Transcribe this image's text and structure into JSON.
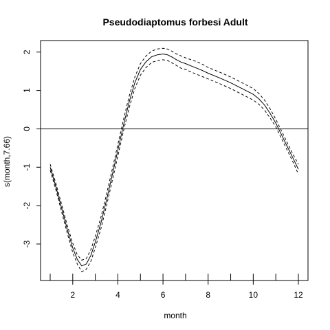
{
  "chart_data": {
    "type": "line",
    "title": "Pseudodiaptomus forbesi Adult",
    "xlabel": "month",
    "ylabel": "s(month,7.66)",
    "xlim": [
      1,
      12
    ],
    "ylim": [
      -3.95,
      2.3
    ],
    "xticks": [
      2,
      4,
      6,
      8,
      10,
      12
    ],
    "yticks": [
      -3,
      -2,
      -1,
      0,
      1,
      2
    ],
    "rug": [
      1,
      2,
      3,
      4,
      5,
      6,
      7,
      8,
      9,
      10,
      11,
      12
    ],
    "hline": 0,
    "x": [
      1,
      1.25,
      1.5,
      1.75,
      2,
      2.2,
      2.4,
      2.6,
      2.8,
      3,
      3.25,
      3.5,
      3.75,
      4,
      4.25,
      4.5,
      4.75,
      5,
      5.25,
      5.5,
      5.75,
      6,
      6.2,
      6.4,
      6.6,
      6.8,
      7,
      7.25,
      7.5,
      7.75,
      8,
      8.5,
      9,
      9.5,
      10,
      10.25,
      10.5,
      10.75,
      11,
      11.25,
      11.5,
      11.75,
      12
    ],
    "series": [
      {
        "style": "solid",
        "values": [
          -1.0,
          -1.5,
          -2.05,
          -2.6,
          -3.1,
          -3.4,
          -3.57,
          -3.52,
          -3.3,
          -2.95,
          -2.45,
          -1.85,
          -1.2,
          -0.55,
          0.1,
          0.7,
          1.2,
          1.55,
          1.75,
          1.88,
          1.93,
          1.95,
          1.93,
          1.87,
          1.8,
          1.74,
          1.7,
          1.64,
          1.58,
          1.52,
          1.45,
          1.33,
          1.2,
          1.05,
          0.9,
          0.78,
          0.62,
          0.4,
          0.15,
          -0.15,
          -0.45,
          -0.75,
          -1.05
        ]
      },
      {
        "style": "dashed",
        "values": [
          -0.92,
          -1.42,
          -1.95,
          -2.5,
          -2.98,
          -3.28,
          -3.42,
          -3.38,
          -3.15,
          -2.8,
          -2.3,
          -1.7,
          -1.05,
          -0.4,
          0.25,
          0.85,
          1.35,
          1.7,
          1.9,
          2.03,
          2.08,
          2.1,
          2.08,
          2.02,
          1.95,
          1.9,
          1.85,
          1.8,
          1.75,
          1.68,
          1.6,
          1.48,
          1.35,
          1.2,
          1.05,
          0.92,
          0.75,
          0.52,
          0.25,
          -0.05,
          -0.35,
          -0.65,
          -0.92
        ]
      },
      {
        "style": "dashed",
        "values": [
          -1.08,
          -1.58,
          -2.15,
          -2.7,
          -3.22,
          -3.52,
          -3.72,
          -3.66,
          -3.45,
          -3.1,
          -2.6,
          -2.0,
          -1.35,
          -0.7,
          -0.05,
          0.55,
          1.05,
          1.4,
          1.6,
          1.73,
          1.78,
          1.8,
          1.78,
          1.72,
          1.65,
          1.58,
          1.55,
          1.48,
          1.42,
          1.36,
          1.3,
          1.18,
          1.05,
          0.9,
          0.75,
          0.64,
          0.49,
          0.28,
          0.05,
          -0.25,
          -0.55,
          -0.85,
          -1.18
        ]
      }
    ]
  }
}
